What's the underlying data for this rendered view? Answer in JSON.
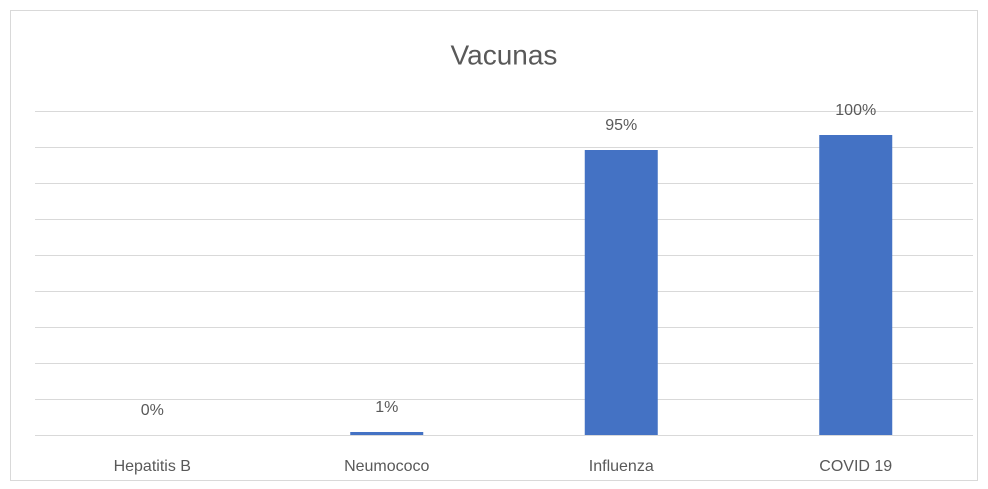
{
  "chart_data": {
    "type": "bar",
    "title": "Vacunas",
    "categories": [
      "Hepatitis B",
      "Neumococo",
      "Influenza",
      "COVID 19"
    ],
    "values": [
      0,
      1,
      95,
      100
    ],
    "value_labels": [
      "0%",
      "1%",
      "95%",
      "100%"
    ],
    "color": "#4472c4",
    "ylim": [
      0,
      108
    ],
    "yticks": [
      0,
      12,
      24,
      36,
      48,
      60,
      72,
      84,
      96,
      108
    ],
    "grid": true
  }
}
